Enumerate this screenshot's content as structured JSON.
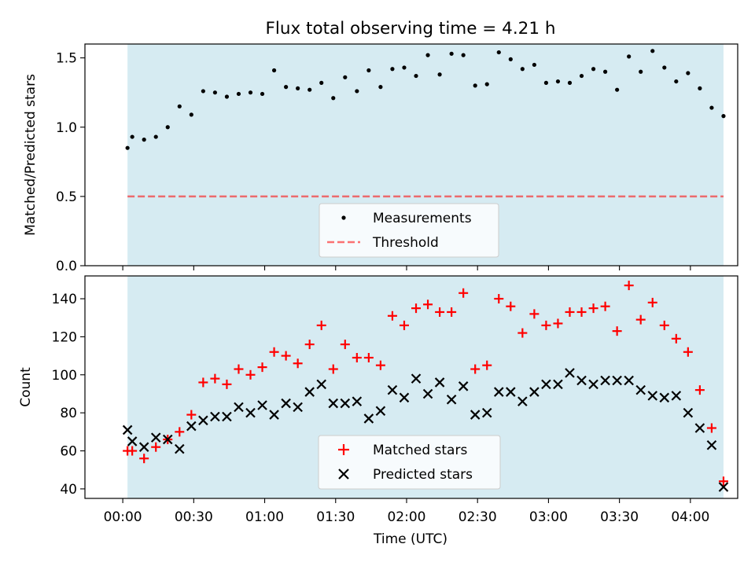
{
  "figure": {
    "title": "Flux total observing time = 4.21 h"
  },
  "colors": {
    "span": "#add8e6",
    "matched": "#ff0000",
    "predicted": "#000000",
    "threshold": "#ff0000"
  },
  "chart_data": [
    {
      "type": "scatter",
      "title": "Flux total observing time = 4.21 h",
      "ylabel": "Matched/Predicted stars",
      "xlabel": "",
      "ylim": [
        0,
        1.6
      ],
      "yticks": [
        "0.0",
        "0.5",
        "1.0",
        "1.5"
      ],
      "shaded_span": [
        "00:02",
        "04:14"
      ],
      "threshold": 0.5,
      "legend": {
        "placement": "lower center",
        "entries": [
          "Measurements",
          "Threshold"
        ]
      },
      "series": [
        {
          "name": "Measurements",
          "x": [
            "00:02",
            "00:04",
            "00:09",
            "00:14",
            "00:19",
            "00:24",
            "00:29",
            "00:34",
            "00:39",
            "00:44",
            "00:49",
            "00:54",
            "00:59",
            "01:04",
            "01:09",
            "01:14",
            "01:19",
            "01:24",
            "01:29",
            "01:34",
            "01:39",
            "01:44",
            "01:49",
            "01:54",
            "01:59",
            "02:04",
            "02:09",
            "02:14",
            "02:19",
            "02:24",
            "02:29",
            "02:34",
            "02:39",
            "02:44",
            "02:49",
            "02:54",
            "02:59",
            "03:04",
            "03:09",
            "03:14",
            "03:19",
            "03:24",
            "03:29",
            "03:34",
            "03:39",
            "03:44",
            "03:49",
            "03:54",
            "03:59",
            "04:04",
            "04:09",
            "04:14"
          ],
          "values": [
            0.85,
            0.93,
            0.91,
            0.93,
            1.0,
            1.15,
            1.09,
            1.26,
            1.25,
            1.22,
            1.24,
            1.25,
            1.24,
            1.41,
            1.29,
            1.28,
            1.27,
            1.32,
            1.21,
            1.36,
            1.26,
            1.41,
            1.29,
            1.42,
            1.43,
            1.37,
            1.52,
            1.38,
            1.53,
            1.52,
            1.3,
            1.31,
            1.54,
            1.49,
            1.42,
            1.45,
            1.32,
            1.33,
            1.32,
            1.37,
            1.42,
            1.4,
            1.27,
            1.51,
            1.4,
            1.55,
            1.43,
            1.33,
            1.39,
            1.28,
            1.14,
            1.08
          ]
        },
        {
          "name": "Threshold",
          "x": [
            "00:02",
            "04:14"
          ],
          "values": [
            0.5,
            0.5
          ]
        }
      ]
    },
    {
      "type": "scatter",
      "ylabel": "Count",
      "xlabel": "Time (UTC)",
      "ylim": [
        35,
        152
      ],
      "yticks": [
        "40",
        "60",
        "80",
        "100",
        "120",
        "140"
      ],
      "xticks": [
        "00:00",
        "00:30",
        "01:00",
        "01:30",
        "02:00",
        "02:30",
        "03:00",
        "03:30",
        "04:00"
      ],
      "shaded_span": [
        "00:02",
        "04:14"
      ],
      "legend": {
        "placement": "lower center",
        "entries": [
          "Matched stars",
          "Predicted stars"
        ]
      },
      "series": [
        {
          "name": "Matched stars",
          "x": [
            "00:02",
            "00:04",
            "00:09",
            "00:14",
            "00:19",
            "00:24",
            "00:29",
            "00:34",
            "00:39",
            "00:44",
            "00:49",
            "00:54",
            "00:59",
            "01:04",
            "01:09",
            "01:14",
            "01:19",
            "01:24",
            "01:29",
            "01:34",
            "01:39",
            "01:44",
            "01:49",
            "01:54",
            "01:59",
            "02:04",
            "02:09",
            "02:14",
            "02:19",
            "02:24",
            "02:29",
            "02:34",
            "02:39",
            "02:44",
            "02:49",
            "02:54",
            "02:59",
            "03:04",
            "03:09",
            "03:14",
            "03:19",
            "03:24",
            "03:29",
            "03:34",
            "03:39",
            "03:44",
            "03:49",
            "03:54",
            "03:59",
            "04:04",
            "04:09",
            "04:14"
          ],
          "values": [
            60,
            60,
            56,
            62,
            66,
            70,
            79,
            96,
            98,
            95,
            103,
            100,
            104,
            112,
            110,
            106,
            116,
            126,
            103,
            116,
            109,
            109,
            105,
            131,
            126,
            135,
            137,
            133,
            133,
            143,
            103,
            105,
            140,
            136,
            122,
            132,
            126,
            127,
            133,
            133,
            135,
            136,
            123,
            147,
            129,
            138,
            126,
            119,
            112,
            92,
            72,
            44
          ]
        },
        {
          "name": "Predicted stars",
          "x": [
            "00:02",
            "00:04",
            "00:09",
            "00:14",
            "00:19",
            "00:24",
            "00:29",
            "00:34",
            "00:39",
            "00:44",
            "00:49",
            "00:54",
            "00:59",
            "01:04",
            "01:09",
            "01:14",
            "01:19",
            "01:24",
            "01:29",
            "01:34",
            "01:39",
            "01:44",
            "01:49",
            "01:54",
            "01:59",
            "02:04",
            "02:09",
            "02:14",
            "02:19",
            "02:24",
            "02:29",
            "02:34",
            "02:39",
            "02:44",
            "02:49",
            "02:54",
            "02:59",
            "03:04",
            "03:09",
            "03:14",
            "03:19",
            "03:24",
            "03:29",
            "03:34",
            "03:39",
            "03:44",
            "03:49",
            "03:54",
            "03:59",
            "04:04",
            "04:09",
            "04:14"
          ],
          "values": [
            71,
            65,
            62,
            67,
            66,
            61,
            73,
            76,
            78,
            78,
            83,
            80,
            84,
            79,
            85,
            83,
            91,
            95,
            85,
            85,
            86,
            77,
            81,
            92,
            88,
            98,
            90,
            96,
            87,
            94,
            79,
            80,
            91,
            91,
            86,
            91,
            95,
            95,
            101,
            97,
            95,
            97,
            97,
            97,
            92,
            89,
            88,
            89,
            80,
            72,
            63,
            41
          ]
        }
      ]
    }
  ]
}
